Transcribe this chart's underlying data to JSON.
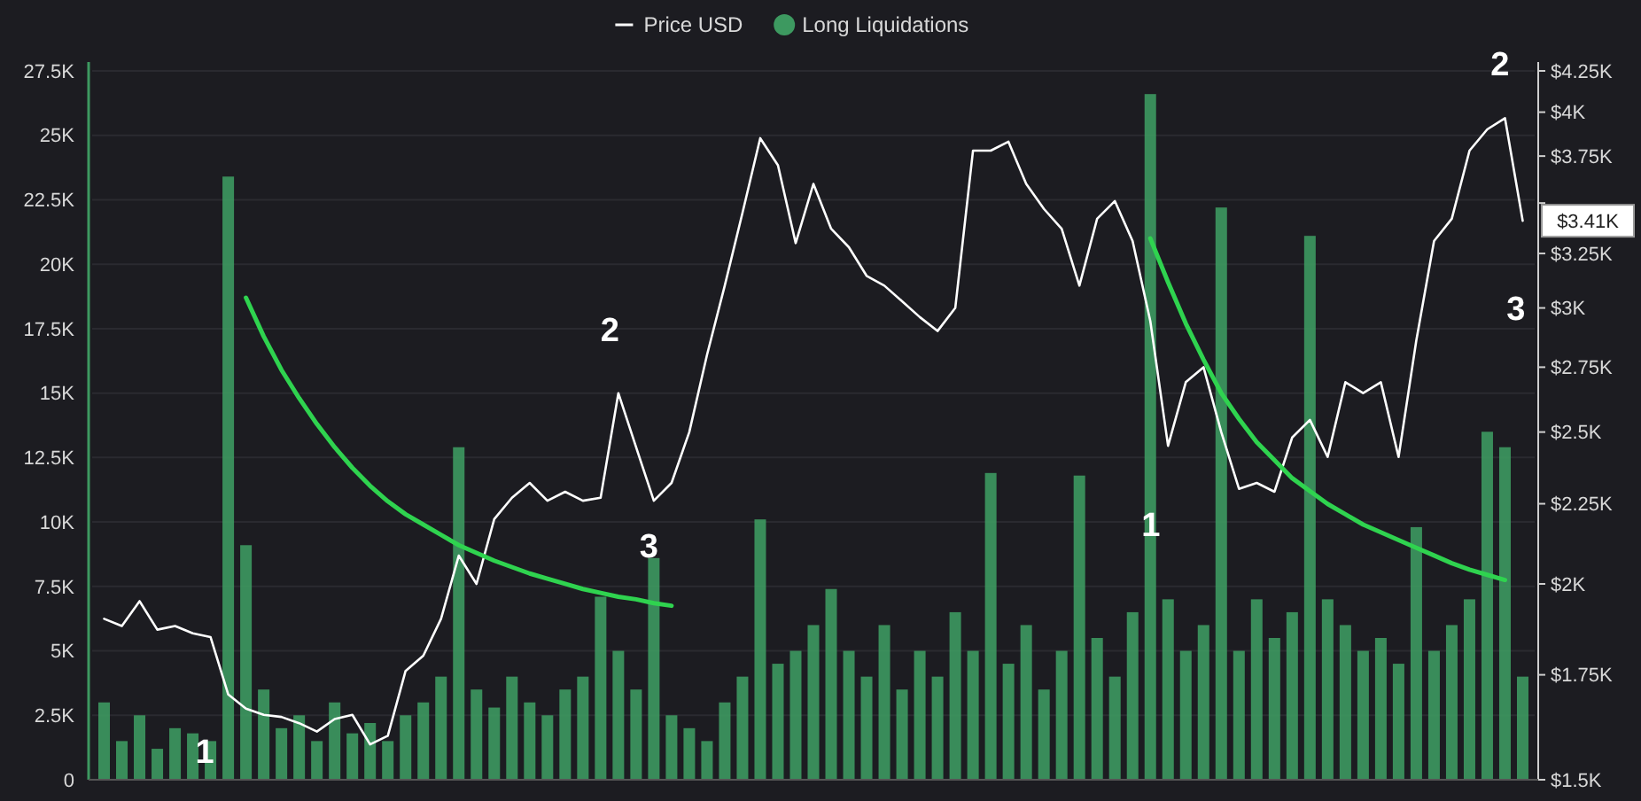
{
  "chart_data": {
    "type": "bar",
    "categories": [
      null,
      null,
      null,
      null,
      null,
      null,
      null,
      null,
      null,
      null,
      null,
      null,
      null,
      null,
      null,
      null,
      null,
      null,
      null,
      null,
      null,
      null,
      null,
      null,
      null,
      null,
      null,
      null,
      null,
      null,
      null,
      null,
      null,
      null,
      null,
      null,
      null,
      null,
      null,
      null,
      null,
      null,
      null,
      null,
      null,
      null,
      null,
      null,
      null,
      null,
      null,
      null,
      null,
      null,
      null,
      null,
      null,
      null,
      null,
      null,
      null,
      null,
      null,
      null,
      null,
      null,
      null,
      null,
      null,
      null,
      null,
      null,
      null,
      null,
      null,
      null,
      null,
      null,
      null,
      null,
      null
    ],
    "series": [
      {
        "name": "Long Liquidations",
        "color": "#3d9960",
        "values": [
          3000,
          1500,
          2500,
          1200,
          2000,
          1800,
          1500,
          23400,
          9100,
          3500,
          2000,
          2500,
          1500,
          3000,
          1800,
          2200,
          1500,
          2500,
          3000,
          4000,
          12900,
          3500,
          2800,
          4000,
          3000,
          2500,
          3500,
          4000,
          7100,
          5000,
          3500,
          8600,
          2500,
          2000,
          1500,
          3000,
          4000,
          10100,
          4500,
          5000,
          6000,
          7400,
          5000,
          4000,
          6000,
          3500,
          5000,
          4000,
          6500,
          5000,
          11900,
          4500,
          6000,
          3500,
          5000,
          11800,
          5500,
          4000,
          6500,
          26600,
          7000,
          5000,
          6000,
          22200,
          5000,
          7000,
          5500,
          6500,
          21100,
          7000,
          6000,
          5000,
          5500,
          4500,
          9800,
          5000,
          6000,
          7000,
          13500,
          12900,
          4000
        ]
      },
      {
        "name": "Price USD",
        "type": "line",
        "axis": "y2",
        "color": "#ffffff",
        "values": [
          1900,
          1880,
          1950,
          1870,
          1880,
          1860,
          1850,
          1700,
          1665,
          1650,
          1645,
          1630,
          1610,
          1640,
          1650,
          1580,
          1600,
          1760,
          1800,
          1900,
          2085,
          2000,
          2200,
          2270,
          2320,
          2260,
          2290,
          2260,
          2270,
          2647,
          2445,
          2260,
          2320,
          2500,
          2800,
          3100,
          3450,
          3850,
          3700,
          3300,
          3600,
          3370,
          3280,
          3145,
          3100,
          3030,
          2960,
          2900,
          3000,
          3780,
          3780,
          3830,
          3600,
          3470,
          3370,
          3100,
          3420,
          3510,
          3310,
          2942,
          2450,
          2690,
          2750,
          2500,
          2300,
          2320,
          2290,
          2480,
          2545,
          2410,
          2690,
          2647,
          2690,
          2410,
          2860,
          3310,
          3420,
          3780,
          3900,
          3965,
          3410
        ]
      },
      {
        "type": "line",
        "color": "#2fd34f",
        "values": [
          null,
          null,
          null,
          null,
          null,
          null,
          null,
          null,
          18700,
          17200,
          15900,
          14800,
          13800,
          12900,
          12100,
          11400,
          10800,
          10300,
          9900,
          9500,
          9100,
          8800,
          8500,
          8250,
          8000,
          7800,
          7600,
          7400,
          7250,
          7100,
          7000,
          6850,
          6750,
          null,
          null,
          null,
          null,
          null,
          null,
          null,
          null,
          null,
          null,
          null,
          null,
          null,
          null,
          null,
          null,
          null,
          null,
          null,
          null,
          null,
          null,
          null,
          null,
          null,
          null,
          null,
          null,
          null,
          null,
          null,
          null,
          null,
          null,
          null,
          null,
          null,
          null,
          null,
          null,
          null,
          null,
          null,
          null,
          null,
          null,
          null,
          null
        ]
      },
      {
        "type": "line",
        "color": "#2fd34f",
        "values": [
          null,
          null,
          null,
          null,
          null,
          null,
          null,
          null,
          null,
          null,
          null,
          null,
          null,
          null,
          null,
          null,
          null,
          null,
          null,
          null,
          null,
          null,
          null,
          null,
          null,
          null,
          null,
          null,
          null,
          null,
          null,
          null,
          null,
          null,
          null,
          null,
          null,
          null,
          null,
          null,
          null,
          null,
          null,
          null,
          null,
          null,
          null,
          null,
          null,
          null,
          null,
          null,
          null,
          null,
          null,
          null,
          null,
          null,
          null,
          21000,
          19300,
          17700,
          16300,
          15000,
          14000,
          13100,
          12400,
          11700,
          11200,
          10700,
          10300,
          9900,
          9600,
          9300,
          9000,
          8700,
          8400,
          8150,
          7950,
          7750,
          null
        ]
      }
    ],
    "ylim": [
      0,
      27500
    ],
    "yticks": [
      0,
      {
        "value": 2500,
        "label": "2.5K"
      },
      {
        "value": 5000,
        "label": "5K"
      },
      {
        "value": 7500,
        "label": "7.5K"
      },
      {
        "value": 10000,
        "label": "10K"
      },
      {
        "value": 12500,
        "label": "12.5K"
      },
      {
        "value": 15000,
        "label": "15K"
      },
      {
        "value": 17500,
        "label": "17.5K"
      },
      {
        "value": 20000,
        "label": "20K"
      },
      {
        "value": 22500,
        "label": "22.5K"
      },
      {
        "value": 25000,
        "label": "25K"
      },
      {
        "value": 27500,
        "label": "27.5K"
      }
    ],
    "y2lim": [
      1500,
      4250
    ],
    "y2ticks": [
      {
        "value": 1500,
        "label": "$1.5K"
      },
      {
        "value": 1750,
        "label": "$1.75K"
      },
      {
        "value": 2000,
        "label": "$2K"
      },
      {
        "value": 2250,
        "label": "$2.25K"
      },
      {
        "value": 2500,
        "label": "$2.5K"
      },
      {
        "value": 2750,
        "label": "$2.75K"
      },
      {
        "value": 3000,
        "label": "$3K"
      },
      {
        "value": 3250,
        "label": "$3.25K"
      },
      {
        "value": 3500,
        "label": null
      },
      {
        "value": 3750,
        "label": "$3.75K"
      },
      {
        "value": 4000,
        "label": "$4K"
      },
      {
        "value": 4250,
        "label": "$4.25K"
      }
    ],
    "log": "y2",
    "grid": "y",
    "legend": "top",
    "annotations": [
      "1",
      "2",
      "3",
      "1",
      "2",
      "3",
      "$3.41K"
    ]
  }
}
